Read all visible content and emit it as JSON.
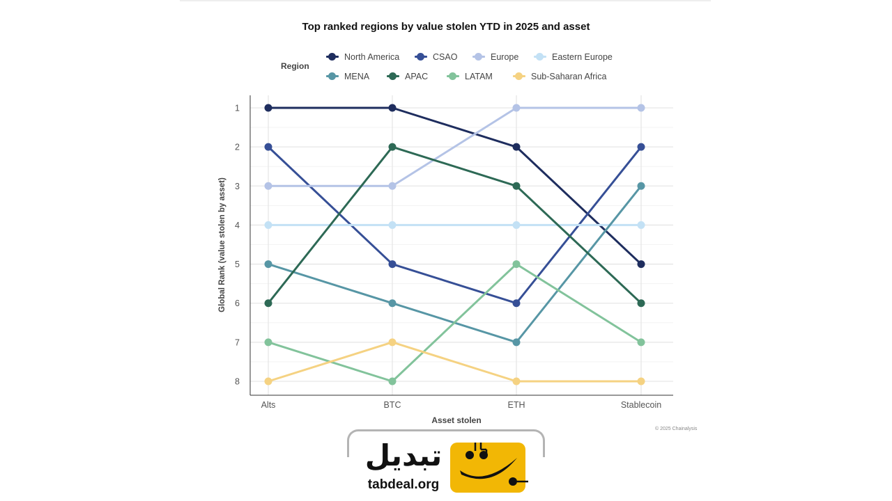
{
  "chart_data": {
    "type": "line",
    "title": "Top ranked regions by value stolen YTD in 2025 and asset",
    "xlabel": "Asset stolen",
    "ylabel": "Global Rank (value stolen by asset)",
    "categories": [
      "Alts",
      "BTC",
      "ETH",
      "Stablecoin"
    ],
    "ylim": [
      8,
      1
    ],
    "y_ticks": [
      1,
      2,
      3,
      4,
      5,
      6,
      7,
      8
    ],
    "y_inverted": true,
    "grid": true,
    "legend_title": "Region",
    "legend_position": "top",
    "series": [
      {
        "name": "North America",
        "color": "#1e2d5e",
        "values": [
          1,
          1,
          2,
          5
        ]
      },
      {
        "name": "CSAO",
        "color": "#364f96",
        "values": [
          2,
          5,
          6,
          2
        ]
      },
      {
        "name": "Europe",
        "color": "#b4c3e6",
        "values": [
          3,
          3,
          1,
          1
        ]
      },
      {
        "name": "Eastern Europe",
        "color": "#c3e1f5",
        "values": [
          4,
          4,
          4,
          4
        ]
      },
      {
        "name": "MENA",
        "color": "#5796a5",
        "values": [
          5,
          6,
          7,
          3
        ]
      },
      {
        "name": "APAC",
        "color": "#2d6955",
        "values": [
          6,
          2,
          3,
          6
        ]
      },
      {
        "name": "LATAM",
        "color": "#82c39b",
        "values": [
          7,
          8,
          5,
          7
        ]
      },
      {
        "name": "Sub-Saharan Africa",
        "color": "#f5d282",
        "values": [
          8,
          7,
          8,
          8
        ]
      }
    ]
  },
  "copyright": "© 2025 Chainalysis",
  "watermark": {
    "arabic_text": "تبدیل",
    "url": "tabdeal.org",
    "icon_name": "tabdeal-logo-icon",
    "icon_color": "#f2b705"
  }
}
